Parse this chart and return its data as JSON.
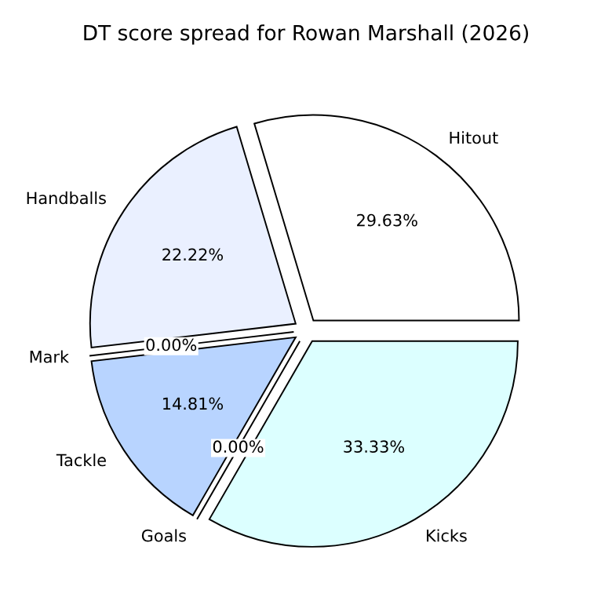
{
  "chart_data": {
    "type": "pie",
    "title": "DT score spread for Rowan Marshall (2026)",
    "categories": [
      "Hitout",
      "Handballs",
      "Mark",
      "Tackle",
      "Goals",
      "Kicks"
    ],
    "values": [
      29.63,
      22.22,
      0,
      14.81,
      0,
      33.33
    ],
    "value_labels": [
      "29.63%",
      "22.22%",
      "0.00%",
      "14.81%",
      "0.00%",
      "33.33%"
    ],
    "colors": [
      "#ffffff",
      "#eaf0ff",
      "#d0e0ff",
      "#b8d4ff",
      "#c8f0ff",
      "#dcffff"
    ],
    "legend": false
  }
}
